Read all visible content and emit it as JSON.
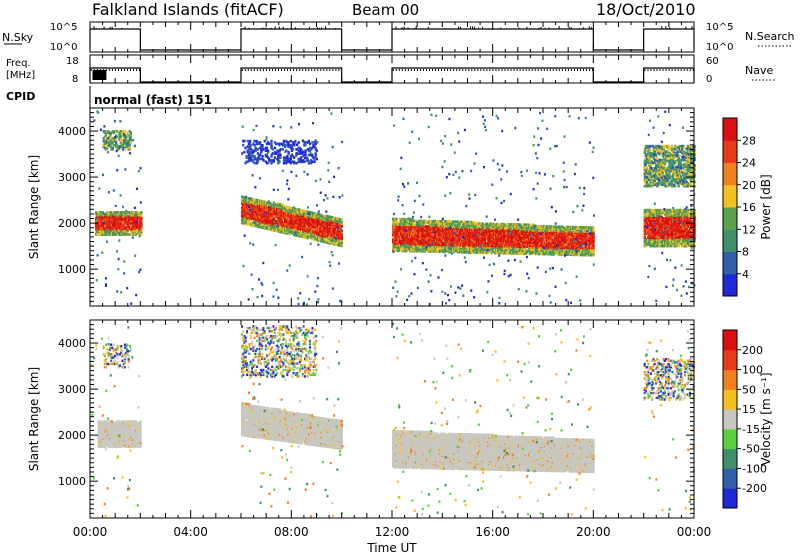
{
  "header": {
    "station": "Falkland Islands (fitACF)",
    "beam": "Beam 00",
    "date": "18/Oct/2010"
  },
  "top_panels": {
    "nsky": {
      "label": "N.Sky",
      "tick_top": "10^5",
      "tick_bottom": "10^0"
    },
    "nsearch": {
      "label": "N.Search",
      "tick_top": "10^5",
      "tick_bottom": "10^0"
    },
    "freq": {
      "label_line1": "Freq.",
      "label_line2": "[MHz]",
      "tick_top": "18",
      "tick_bottom": "8"
    },
    "nave": {
      "label": "Nave",
      "tick_top": "60",
      "tick_bottom": "0"
    },
    "cpid": {
      "label": "CPID",
      "value": "normal (fast) 151"
    }
  },
  "chart_data": [
    {
      "type": "heatmap",
      "name": "power",
      "ylabel": "Slant Range [km]",
      "xlabel": "Time UT",
      "xlim": [
        "00:00",
        "24:00"
      ],
      "ylim": [
        200,
        4500
      ],
      "yticks": [
        1000,
        2000,
        3000,
        4000
      ],
      "colorbar": {
        "label": "Power [dB]",
        "ticks": [
          "4",
          "8",
          "12",
          "16",
          "20",
          "24",
          "28"
        ],
        "colors": [
          "#1f2ad6",
          "#2f5fa8",
          "#3f8f6a",
          "#5aa24a",
          "#f0c020",
          "#f08020",
          "#e83a1a",
          "#d81010"
        ]
      },
      "data_periods_hours": [
        [
          0.0,
          2.0
        ],
        [
          6.0,
          10.0
        ],
        [
          12.0,
          20.0
        ],
        [
          22.0,
          24.0
        ]
      ],
      "echo_regions": [
        {
          "t": [
            0.2,
            2.0
          ],
          "range_km": [
            1750,
            2250
          ],
          "level": "red"
        },
        {
          "t": [
            0.5,
            1.6
          ],
          "range_km": [
            3600,
            4000
          ],
          "level": "mixed"
        },
        {
          "t": [
            6.0,
            10.0
          ],
          "range_km_start": [
            2000,
            2600
          ],
          "range_km_end": [
            1500,
            2100
          ],
          "level": "red"
        },
        {
          "t": [
            6.0,
            9.0
          ],
          "range_km": [
            3300,
            3800
          ],
          "level": "blue"
        },
        {
          "t": [
            12.0,
            20.0
          ],
          "range_km_start": [
            1400,
            2100
          ],
          "range_km_end": [
            1300,
            1900
          ],
          "level": "red"
        },
        {
          "t": [
            22.0,
            24.0
          ],
          "range_km": [
            1500,
            2300
          ],
          "level": "red"
        },
        {
          "t": [
            22.0,
            24.0
          ],
          "range_km": [
            2800,
            3700
          ],
          "level": "mixed"
        }
      ]
    },
    {
      "type": "heatmap",
      "name": "velocity",
      "ylabel": "Slant Range [km]",
      "xlabel": "Time UT",
      "xlim": [
        "00:00",
        "24:00"
      ],
      "ylim": [
        200,
        4500
      ],
      "yticks": [
        1000,
        2000,
        3000,
        4000
      ],
      "xticks": [
        "00:00",
        "04:00",
        "08:00",
        "12:00",
        "16:00",
        "20:00",
        "00:00"
      ],
      "colorbar": {
        "label": "Velocity [m s⁻¹]",
        "ticks": [
          "200",
          "100",
          "50",
          "15",
          "-15",
          "-50",
          "-100",
          "-200"
        ],
        "colors": [
          "#1f2ad6",
          "#2f5fa8",
          "#3f8f6a",
          "#5ad040",
          "#c8c8c0",
          "#f0c020",
          "#f08020",
          "#e83a1a",
          "#d81010"
        ]
      },
      "data_periods_hours": [
        [
          0.0,
          2.0
        ],
        [
          6.0,
          10.0
        ],
        [
          12.0,
          20.0
        ],
        [
          22.0,
          24.0
        ]
      ],
      "ground_scatter_regions": [
        {
          "t": [
            0.3,
            2.0
          ],
          "range_km": [
            1750,
            2300
          ]
        },
        {
          "t": [
            6.0,
            10.0
          ],
          "range_km_start": [
            2000,
            2700
          ],
          "range_km_end": [
            1700,
            2300
          ]
        },
        {
          "t": [
            12.0,
            20.0
          ],
          "range_km_start": [
            1300,
            2100
          ],
          "range_km_end": [
            1200,
            1900
          ]
        }
      ]
    }
  ]
}
